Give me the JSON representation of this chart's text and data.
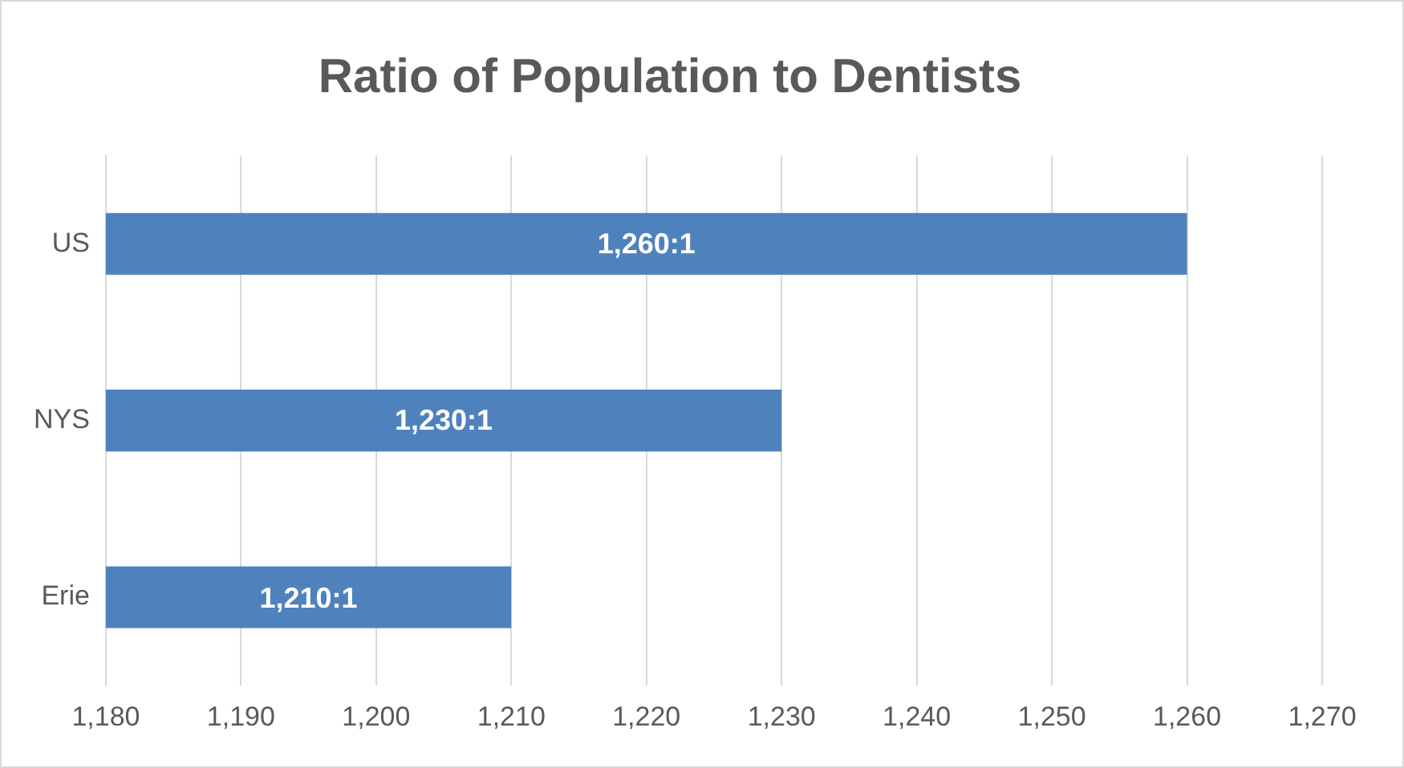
{
  "chart_data": {
    "type": "bar",
    "orientation": "horizontal",
    "title": "Ratio of Population to Dentists",
    "categories": [
      "US",
      "NYS",
      "Erie"
    ],
    "values": [
      1260,
      1230,
      1210
    ],
    "color": "#4f81bd",
    "value_labels": [
      "1,260:1",
      "1,230:1",
      "1,210:1"
    ],
    "xlim": [
      1180,
      1270
    ],
    "xticks": [
      {
        "value": 1180,
        "label": "1,180"
      },
      {
        "value": 1190,
        "label": "1,190"
      },
      {
        "value": 1200,
        "label": "1,200"
      },
      {
        "value": 1210,
        "label": "1,210"
      },
      {
        "value": 1220,
        "label": "1,220"
      },
      {
        "value": 1230,
        "label": "1,230"
      },
      {
        "value": 1240,
        "label": "1,240"
      },
      {
        "value": 1250,
        "label": "1,250"
      },
      {
        "value": 1260,
        "label": "1,260"
      },
      {
        "value": 1270,
        "label": "1,270"
      }
    ],
    "grid": "x",
    "legend": false
  }
}
